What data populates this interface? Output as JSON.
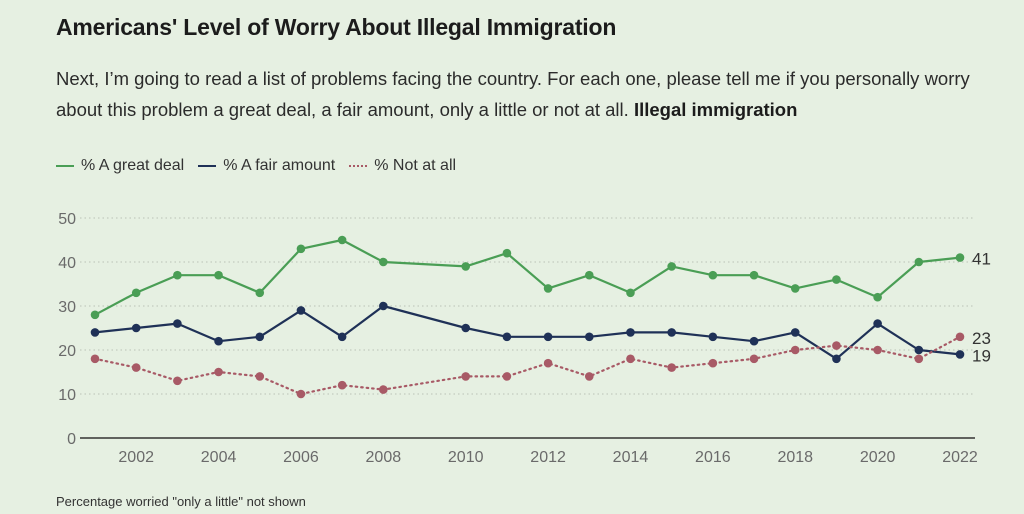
{
  "header": {
    "title": "Americans' Level of Worry About Illegal Immigration",
    "subtitle_text": "Next, I’m going to read a list of problems facing the country. For each one, please tell me if you personally worry about this problem a great deal, a fair amount, only a little or not at all.",
    "subtitle_bold": "Illegal immigration"
  },
  "footnote": "Percentage worried \"only a little\" not shown",
  "chart_data": {
    "type": "line",
    "title": "Americans' Level of Worry About Illegal Immigration",
    "xlabel": "",
    "ylabel": "",
    "x": [
      2001,
      2002,
      2003,
      2004,
      2005,
      2006,
      2007,
      2008,
      2010,
      2011,
      2012,
      2013,
      2014,
      2015,
      2016,
      2017,
      2018,
      2019,
      2020,
      2021,
      2022
    ],
    "xticks": [
      2002,
      2004,
      2006,
      2008,
      2010,
      2012,
      2014,
      2016,
      2018,
      2020,
      2022
    ],
    "xlim": [
      2001,
      2022
    ],
    "yticks": [
      0,
      10,
      20,
      30,
      40,
      50
    ],
    "ylim": [
      0,
      50
    ],
    "grid": "horizontal-dotted",
    "legend_position": "top-left",
    "series": [
      {
        "name": "% A great deal",
        "color": "#4a9e55",
        "style": "solid",
        "end_label": "41",
        "values": [
          28,
          33,
          37,
          37,
          33,
          43,
          45,
          40,
          39,
          42,
          34,
          37,
          33,
          39,
          37,
          37,
          34,
          36,
          32,
          40,
          41
        ]
      },
      {
        "name": "% A fair amount",
        "color": "#1f3157",
        "style": "solid",
        "end_label": "19",
        "values": [
          24,
          25,
          26,
          22,
          23,
          29,
          23,
          30,
          25,
          23,
          23,
          23,
          24,
          24,
          23,
          22,
          24,
          18,
          26,
          20,
          19
        ]
      },
      {
        "name": "% Not at all",
        "color": "#a85a66",
        "style": "dotted",
        "end_label": "23",
        "values": [
          18,
          16,
          13,
          15,
          14,
          10,
          12,
          11,
          14,
          14,
          17,
          14,
          18,
          16,
          17,
          18,
          20,
          21,
          20,
          18,
          23
        ]
      }
    ]
  }
}
